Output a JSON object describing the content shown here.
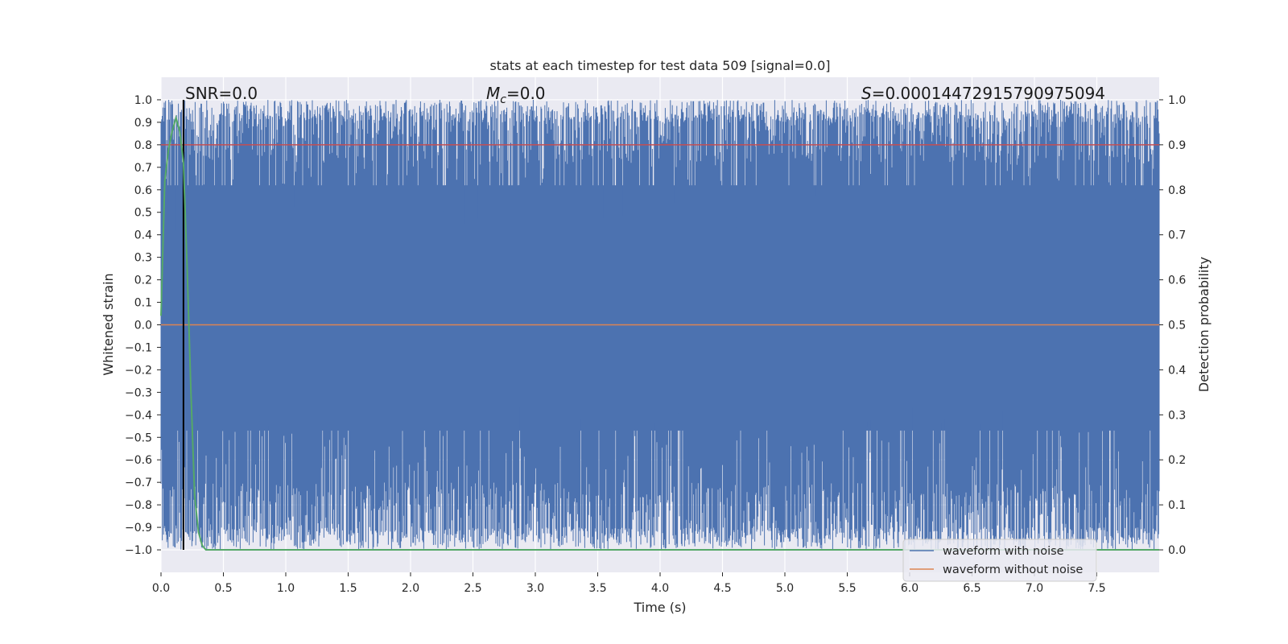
{
  "chart_data": {
    "type": "line",
    "title": "stats at each timestep for test data 509 [signal=0.0]",
    "xlabel": "Time (s)",
    "ylabel": "Whitened strain",
    "y2label": "Detection probability",
    "xlim": [
      0.0,
      8.0
    ],
    "ylim": [
      -1.1,
      1.1
    ],
    "y2lim": [
      -0.05,
      1.05
    ],
    "x_ticks": [
      "0.0",
      "0.5",
      "1.0",
      "1.5",
      "2.0",
      "2.5",
      "3.0",
      "3.5",
      "4.0",
      "4.5",
      "5.0",
      "5.5",
      "6.0",
      "6.5",
      "7.0",
      "7.5"
    ],
    "x_tick_values": [
      0.0,
      0.5,
      1.0,
      1.5,
      2.0,
      2.5,
      3.0,
      3.5,
      4.0,
      4.5,
      5.0,
      5.5,
      6.0,
      6.5,
      7.0,
      7.5
    ],
    "y_ticks": [
      "1.0",
      "0.9",
      "0.8",
      "0.7",
      "0.6",
      "0.5",
      "0.4",
      "0.3",
      "0.2",
      "0.1",
      "0.0",
      "−0.1",
      "−0.2",
      "−0.3",
      "−0.4",
      "−0.5",
      "−0.6",
      "−0.7",
      "−0.8",
      "−0.9",
      "−1.0"
    ],
    "y_tick_values": [
      1.0,
      0.9,
      0.8,
      0.7,
      0.6,
      0.5,
      0.4,
      0.3,
      0.2,
      0.1,
      0.0,
      -0.1,
      -0.2,
      -0.3,
      -0.4,
      -0.5,
      -0.6,
      -0.7,
      -0.8,
      -0.9,
      -1.0
    ],
    "y2_ticks": [
      "1.0",
      "0.9",
      "0.8",
      "0.7",
      "0.6",
      "0.5",
      "0.4",
      "0.3",
      "0.2",
      "0.1",
      "0.0"
    ],
    "y2_tick_values": [
      1.0,
      0.9,
      0.8,
      0.7,
      0.6,
      0.5,
      0.4,
      0.3,
      0.2,
      0.1,
      0.0
    ],
    "grid": true,
    "legend_position": "lower-right",
    "annotations": {
      "snr": "SNR=0.0",
      "mc_symbol": "M",
      "mc_sub": "c",
      "mc_value": "=0.0",
      "s_symbol": "S",
      "s_value": "=0.00014472915790975094"
    },
    "vertical_marker_x": 0.18,
    "threshold_probability": 0.9,
    "series": [
      {
        "name": "waveform with noise",
        "color": "#4c72b0",
        "description_values": "dense noise filling roughly -1.0 to 1.0 across 0.0 to 8.0 s"
      },
      {
        "name": "waveform without noise",
        "color": "#dd8452",
        "values_constant": 0.0
      },
      {
        "name_hidden": "detection probability",
        "color": "#55a868",
        "x": [
          0.0,
          0.03,
          0.06,
          0.09,
          0.12,
          0.15,
          0.18,
          0.21,
          0.24,
          0.27,
          0.3,
          0.33,
          0.36,
          0.4,
          0.5,
          8.0
        ],
        "values": [
          0.52,
          0.82,
          0.89,
          0.93,
          0.96,
          0.93,
          0.86,
          0.62,
          0.35,
          0.12,
          0.04,
          0.01,
          0.0,
          0.0,
          0.0,
          0.0
        ]
      }
    ]
  }
}
